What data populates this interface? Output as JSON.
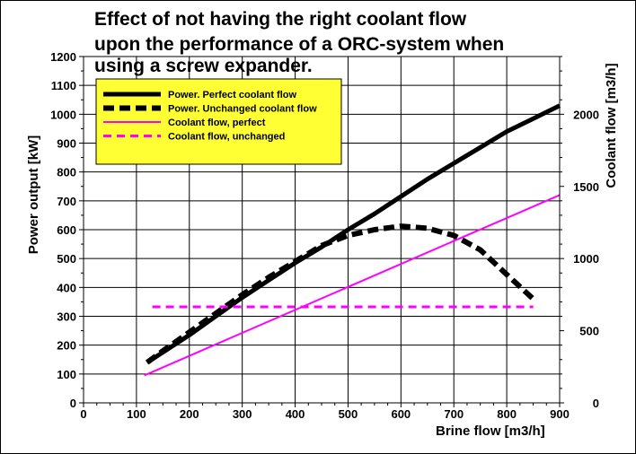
{
  "chart_data": {
    "type": "line",
    "title_lines": [
      "Effect of not having the right coolant flow",
      "upon the performance of a ORC-system when",
      "using a screw expander."
    ],
    "xlabel": "Brine flow [m3/h]",
    "ylabel": "Power output [kW]",
    "y2label": "Coolant flow [m3/h]",
    "xlim": [
      0,
      900
    ],
    "ylim": [
      0,
      1200
    ],
    "y2lim": [
      0,
      2400
    ],
    "x_ticks": [
      "0",
      "100",
      "200",
      "300",
      "400",
      "500",
      "600",
      "700",
      "800",
      "900"
    ],
    "y_ticks": [
      "0",
      "100",
      "200",
      "300",
      "400",
      "500",
      "600",
      "700",
      "800",
      "900",
      "1000",
      "1100",
      "1200"
    ],
    "y2_ticks": [
      "0",
      "500",
      "1000",
      "1500",
      "2000"
    ],
    "grid": true,
    "legend_position": "top-left",
    "legend_bg": "#ffff33",
    "series": [
      {
        "name": "Power. Perfect coolant flow",
        "axis": "left",
        "color": "#000000",
        "style": "solid-thick",
        "x": [
          120,
          150,
          200,
          250,
          300,
          350,
          400,
          450,
          500,
          550,
          600,
          650,
          700,
          750,
          800,
          850,
          900
        ],
        "y": [
          140,
          175,
          235,
          300,
          365,
          425,
          485,
          540,
          600,
          655,
          715,
          775,
          830,
          885,
          940,
          985,
          1030
        ]
      },
      {
        "name": "Power. Unchanged coolant flow",
        "axis": "left",
        "color": "#000000",
        "style": "dashed-thick",
        "x": [
          120,
          150,
          200,
          250,
          300,
          350,
          400,
          450,
          500,
          550,
          600,
          650,
          700,
          750,
          800,
          850
        ],
        "y": [
          140,
          180,
          245,
          310,
          375,
          435,
          490,
          545,
          580,
          600,
          612,
          605,
          580,
          530,
          445,
          360
        ]
      },
      {
        "name": "Coolant flow, perfect",
        "axis": "right",
        "color": "#ff00ff",
        "style": "solid",
        "x": [
          115,
          900
        ],
        "y": [
          190,
          1440
        ]
      },
      {
        "name": "Coolant flow, unchanged",
        "axis": "right",
        "color": "#ff00ff",
        "style": "dashed",
        "x": [
          130,
          850
        ],
        "y": [
          665,
          665
        ]
      }
    ]
  }
}
